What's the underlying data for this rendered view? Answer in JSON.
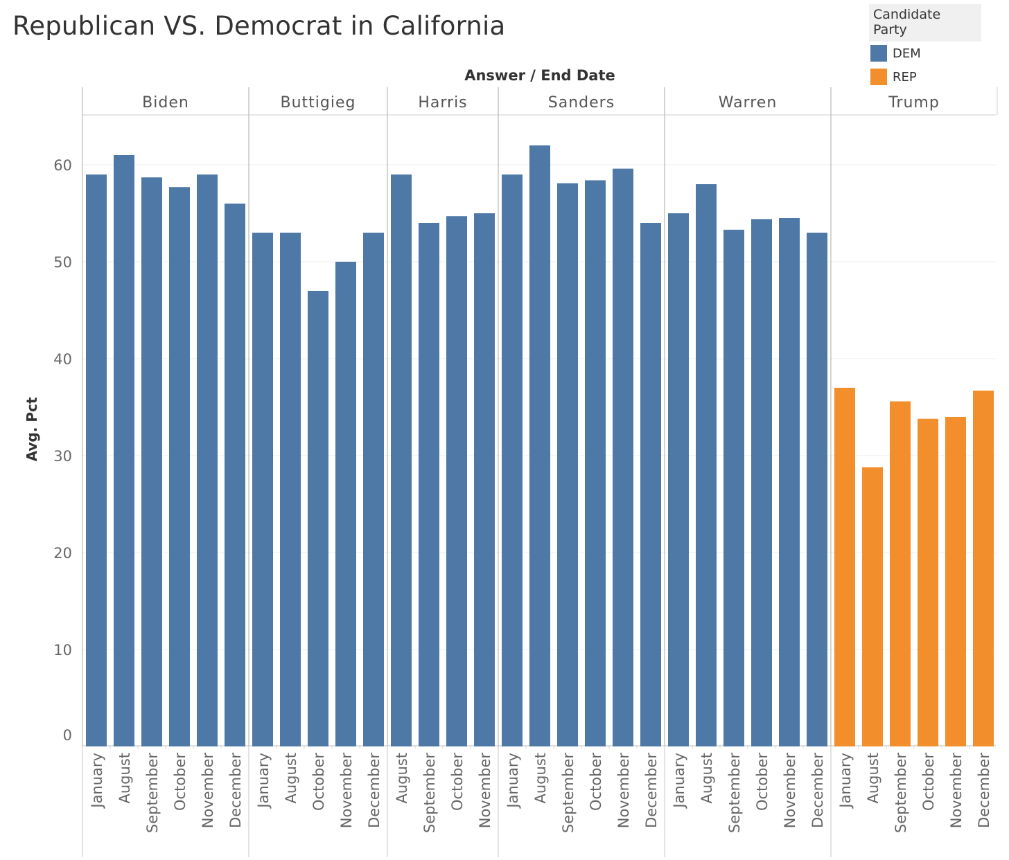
{
  "title": "Republican VS. Democrat in California",
  "legend": {
    "title": "Candidate Party",
    "items": [
      {
        "label": "DEM",
        "color": "#4e79a7"
      },
      {
        "label": "REP",
        "color": "#f28e2b"
      }
    ]
  },
  "chart_data": {
    "type": "bar",
    "title": "Republican VS. Democrat in California",
    "column_header": "Answer / End Date",
    "ylabel": "Avg. Pct",
    "ylim": [
      0,
      65
    ],
    "yticks": [
      0,
      10,
      20,
      30,
      40,
      50,
      60
    ],
    "grid": true,
    "legend_position": "top-right",
    "colors": {
      "DEM": "#4e79a7",
      "REP": "#f28e2b"
    },
    "panels": [
      {
        "answer": "Biden",
        "party": "DEM",
        "categories": [
          "January",
          "August",
          "September",
          "October",
          "November",
          "December"
        ],
        "values": [
          59,
          61,
          58.7,
          57.7,
          59,
          56
        ]
      },
      {
        "answer": "Buttigieg",
        "party": "DEM",
        "categories": [
          "January",
          "August",
          "October",
          "November",
          "December"
        ],
        "values": [
          53,
          53,
          47,
          50,
          53
        ]
      },
      {
        "answer": "Harris",
        "party": "DEM",
        "categories": [
          "August",
          "September",
          "October",
          "November"
        ],
        "values": [
          59,
          54,
          54.7,
          55
        ]
      },
      {
        "answer": "Sanders",
        "party": "DEM",
        "categories": [
          "January",
          "August",
          "September",
          "October",
          "November",
          "December"
        ],
        "values": [
          59,
          62,
          58.1,
          58.4,
          59.6,
          54
        ]
      },
      {
        "answer": "Warren",
        "party": "DEM",
        "categories": [
          "January",
          "August",
          "September",
          "October",
          "November",
          "December"
        ],
        "values": [
          55,
          58,
          53.3,
          54.4,
          54.5,
          53
        ]
      },
      {
        "answer": "Trump",
        "party": "REP",
        "categories": [
          "January",
          "August",
          "September",
          "October",
          "November",
          "December"
        ],
        "values": [
          37,
          28.8,
          35.6,
          33.8,
          34,
          36.7
        ]
      }
    ]
  }
}
